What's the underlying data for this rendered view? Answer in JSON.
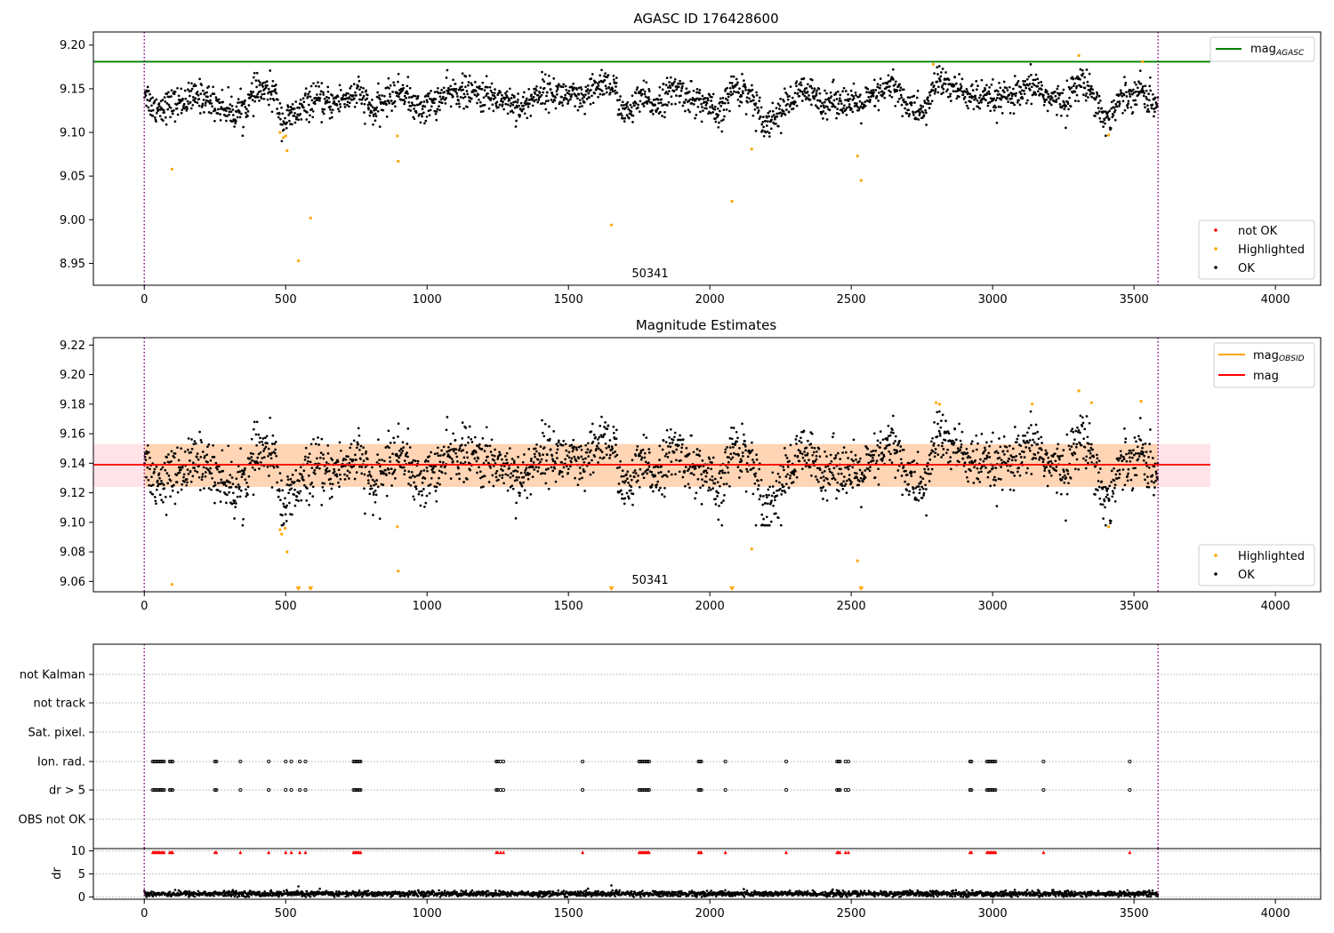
{
  "chart_data": [
    {
      "type": "scatter",
      "title": "AGASC ID 176428600",
      "obsid_label": "50341",
      "xlim": [
        -180,
        4160
      ],
      "ylim": [
        8.925,
        9.215
      ],
      "x_ticks": [
        0,
        500,
        1000,
        1500,
        2000,
        2500,
        3000,
        3500,
        4000
      ],
      "y_ticks": [
        8.95,
        9.0,
        9.05,
        9.1,
        9.15,
        9.2
      ],
      "obsid_boundaries": [
        0,
        3585
      ],
      "reference_line": {
        "name": "mag_AGASC",
        "value": 9.181,
        "x_range": [
          -180,
          3770
        ],
        "color": "#008000"
      },
      "legend_lines": [
        {
          "name": "mag",
          "sub": "AGASC",
          "color": "#008000"
        }
      ],
      "legend_points": [
        {
          "name": "not OK",
          "color": "#ff0000"
        },
        {
          "name": "Highlighted",
          "color": "#ffa500"
        },
        {
          "name": "OK",
          "color": "#000000"
        }
      ],
      "ok_trend": {
        "x_range": [
          0,
          3585
        ],
        "knots": [
          [
            0,
            9.15
          ],
          [
            30,
            9.128
          ],
          [
            100,
            9.132
          ],
          [
            200,
            9.142
          ],
          [
            260,
            9.132
          ],
          [
            320,
            9.122
          ],
          [
            360,
            9.13
          ],
          [
            400,
            9.148
          ],
          [
            460,
            9.145
          ],
          [
            490,
            9.112
          ],
          [
            540,
            9.122
          ],
          [
            600,
            9.138
          ],
          [
            650,
            9.132
          ],
          [
            700,
            9.138
          ],
          [
            760,
            9.145
          ],
          [
            810,
            9.122
          ],
          [
            860,
            9.14
          ],
          [
            920,
            9.148
          ],
          [
            960,
            9.126
          ],
          [
            1000,
            9.13
          ],
          [
            1100,
            9.148
          ],
          [
            1200,
            9.142
          ],
          [
            1280,
            9.138
          ],
          [
            1340,
            9.128
          ],
          [
            1400,
            9.148
          ],
          [
            1500,
            9.142
          ],
          [
            1550,
            9.135
          ],
          [
            1620,
            9.158
          ],
          [
            1660,
            9.152
          ],
          [
            1700,
            9.118
          ],
          [
            1760,
            9.14
          ],
          [
            1800,
            9.132
          ],
          [
            1880,
            9.15
          ],
          [
            1940,
            9.138
          ],
          [
            2000,
            9.13
          ],
          [
            2030,
            9.115
          ],
          [
            2080,
            9.152
          ],
          [
            2140,
            9.145
          ],
          [
            2200,
            9.11
          ],
          [
            2260,
            9.128
          ],
          [
            2330,
            9.148
          ],
          [
            2400,
            9.135
          ],
          [
            2460,
            9.138
          ],
          [
            2520,
            9.13
          ],
          [
            2580,
            9.14
          ],
          [
            2650,
            9.155
          ],
          [
            2700,
            9.13
          ],
          [
            2760,
            9.122
          ],
          [
            2800,
            9.16
          ],
          [
            2880,
            9.148
          ],
          [
            2950,
            9.138
          ],
          [
            3020,
            9.138
          ],
          [
            3100,
            9.142
          ],
          [
            3150,
            9.155
          ],
          [
            3200,
            9.138
          ],
          [
            3260,
            9.135
          ],
          [
            3300,
            9.158
          ],
          [
            3350,
            9.15
          ],
          [
            3400,
            9.112
          ],
          [
            3450,
            9.138
          ],
          [
            3520,
            9.15
          ],
          [
            3585,
            9.128
          ]
        ],
        "noise": 0.009,
        "count": 2400
      },
      "highlighted_points": [
        [
          98,
          9.058
        ],
        [
          480,
          9.1
        ],
        [
          492,
          9.094
        ],
        [
          500,
          9.096
        ],
        [
          505,
          9.079
        ],
        [
          545,
          8.953
        ],
        [
          588,
          9.002
        ],
        [
          895,
          9.096
        ],
        [
          898,
          9.067
        ],
        [
          1652,
          8.994
        ],
        [
          2078,
          9.021
        ],
        [
          2148,
          9.081
        ],
        [
          2522,
          9.073
        ],
        [
          2535,
          9.045
        ],
        [
          2790,
          9.178
        ],
        [
          3305,
          9.188
        ],
        [
          3410,
          9.097
        ],
        [
          3530,
          9.181
        ]
      ]
    },
    {
      "type": "scatter",
      "title": "Magnitude Estimates",
      "obsid_label": "50341",
      "xlim": [
        -180,
        4160
      ],
      "ylim": [
        9.053,
        9.225
      ],
      "x_ticks": [
        0,
        500,
        1000,
        1500,
        2000,
        2500,
        3000,
        3500,
        4000
      ],
      "y_ticks": [
        9.06,
        9.08,
        9.1,
        9.12,
        9.14,
        9.16,
        9.18,
        9.2,
        9.22
      ],
      "obsid_boundaries": [
        0,
        3585
      ],
      "mag_line": {
        "name": "mag",
        "value": 9.139,
        "x_range": [
          -180,
          3770
        ],
        "color": "#ff0000"
      },
      "mag_band": {
        "low": 9.124,
        "high": 9.153,
        "x_range": [
          -180,
          3770
        ],
        "color": "#ffc0cb"
      },
      "obsid_line": {
        "name": "mag_OBSID",
        "value": 9.139,
        "band_low": 9.124,
        "band_high": 9.153,
        "x_range": [
          0,
          3585
        ],
        "color": "#ffa500"
      },
      "legend_lines": [
        {
          "name": "mag",
          "sub": "OBSID",
          "color": "#ffa500"
        },
        {
          "name": "mag",
          "sub": "",
          "color": "#ff0000"
        }
      ],
      "legend_points": [
        {
          "name": "Highlighted",
          "color": "#ffa500"
        },
        {
          "name": "OK",
          "color": "#000000"
        }
      ],
      "highlighted_points": [
        [
          98,
          9.058
        ],
        [
          480,
          9.095
        ],
        [
          486,
          9.092
        ],
        [
          498,
          9.096
        ],
        [
          505,
          9.08
        ],
        [
          895,
          9.097
        ],
        [
          898,
          9.067
        ],
        [
          2148,
          9.082
        ],
        [
          2522,
          9.074
        ],
        [
          2800,
          9.181
        ],
        [
          2812,
          9.18
        ],
        [
          3140,
          9.18
        ],
        [
          3305,
          9.189
        ],
        [
          3350,
          9.181
        ],
        [
          3410,
          9.097
        ],
        [
          3525,
          9.182
        ]
      ],
      "clipped_points": [
        545,
        588,
        1652,
        2078,
        2535
      ]
    },
    {
      "type": "scatter",
      "xlim": [
        -180,
        4160
      ],
      "x_ticks": [
        0,
        500,
        1000,
        1500,
        2000,
        2500,
        3000,
        3500,
        4000
      ],
      "obsid_boundaries": [
        0,
        3585
      ],
      "flag_categories": [
        "not Kalman",
        "not track",
        "Sat. pixel.",
        "Ion. rad.",
        "dr > 5",
        "OBS not OK"
      ],
      "flag_times": [
        30,
        35,
        40,
        45,
        50,
        55,
        60,
        65,
        70,
        90,
        95,
        100,
        250,
        255,
        340,
        440,
        500,
        520,
        550,
        570,
        740,
        745,
        750,
        755,
        760,
        765,
        1245,
        1250,
        1260,
        1270,
        1550,
        1750,
        1755,
        1760,
        1765,
        1770,
        1775,
        1780,
        1785,
        1960,
        1965,
        1970,
        2055,
        2270,
        2450,
        2455,
        2460,
        2480,
        2490,
        2920,
        2925,
        2980,
        2985,
        2990,
        2995,
        3000,
        3005,
        3010,
        3180,
        3485
      ],
      "dr_ylabel": "dr",
      "dr_ylim": [
        -0.5,
        10.5
      ],
      "dr_ticks": [
        0,
        5,
        10
      ],
      "dr_threshold": 10,
      "dr_trend": {
        "base": 0.7,
        "noise": 0.5,
        "count": 2400,
        "outliers": [
          [
            545,
            2.3
          ],
          [
            1652,
            2.5
          ]
        ]
      }
    }
  ]
}
